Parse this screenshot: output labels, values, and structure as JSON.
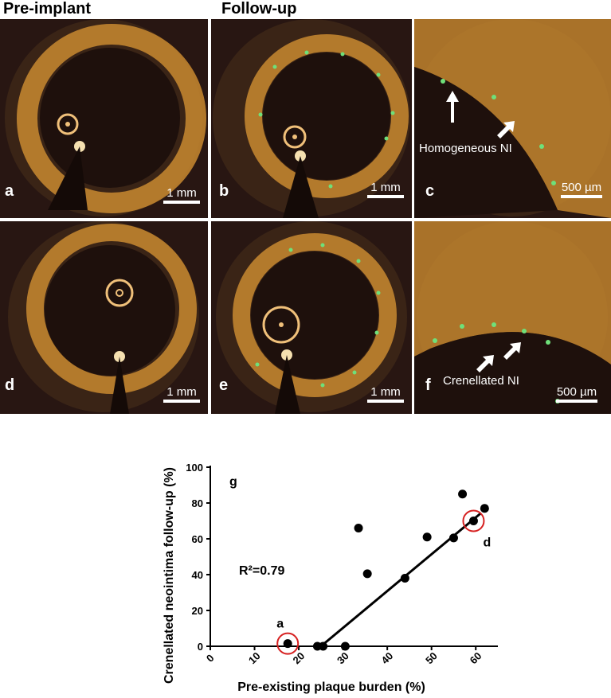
{
  "headers": {
    "pre": "Pre-implant",
    "follow": "Follow-up"
  },
  "panels": {
    "a": {
      "label": "a",
      "scale": "1 mm"
    },
    "b": {
      "label": "b",
      "scale": "1 mm"
    },
    "c": {
      "label": "c",
      "scale": "500 µm",
      "note": "Homogeneous NI"
    },
    "d": {
      "label": "d",
      "scale": "1 mm"
    },
    "e": {
      "label": "e",
      "scale": "1 mm"
    },
    "f": {
      "label": "f",
      "scale": "500 µm",
      "note": "Crenellated NI"
    }
  },
  "colors": {
    "tissue": "#e0a83c",
    "background": "#281612",
    "strut": "#6fe07a",
    "highlight": "#d62020"
  },
  "chart_data": {
    "type": "scatter",
    "panel_label": "g",
    "xlabel": "Pre-existing plaque burden (%)",
    "ylabel": "Crenellated neointima  follow-up (%)",
    "xlim": [
      0,
      65
    ],
    "ylim": [
      0,
      100
    ],
    "xticks": [
      "0",
      "10",
      "20",
      "30",
      "40",
      "50",
      "60"
    ],
    "yticks": [
      "0",
      "20",
      "40",
      "60",
      "80",
      "100"
    ],
    "annotation": "R²=0.79",
    "points": [
      {
        "x": 17.5,
        "y": 1.5
      },
      {
        "x": 24.2,
        "y": 0
      },
      {
        "x": 25.5,
        "y": 0
      },
      {
        "x": 30.5,
        "y": 0
      },
      {
        "x": 33.5,
        "y": 66
      },
      {
        "x": 35.5,
        "y": 40.5
      },
      {
        "x": 44,
        "y": 38
      },
      {
        "x": 49,
        "y": 61
      },
      {
        "x": 55,
        "y": 60.5
      },
      {
        "x": 57,
        "y": 85
      },
      {
        "x": 59.5,
        "y": 70
      },
      {
        "x": 62,
        "y": 77
      }
    ],
    "regression": {
      "from": [
        25,
        0
      ],
      "to": [
        61,
        74
      ]
    },
    "highlighted": [
      {
        "x": 17.5,
        "y": 1.5,
        "label": "a"
      },
      {
        "x": 59.5,
        "y": 70,
        "label": "d"
      }
    ]
  }
}
